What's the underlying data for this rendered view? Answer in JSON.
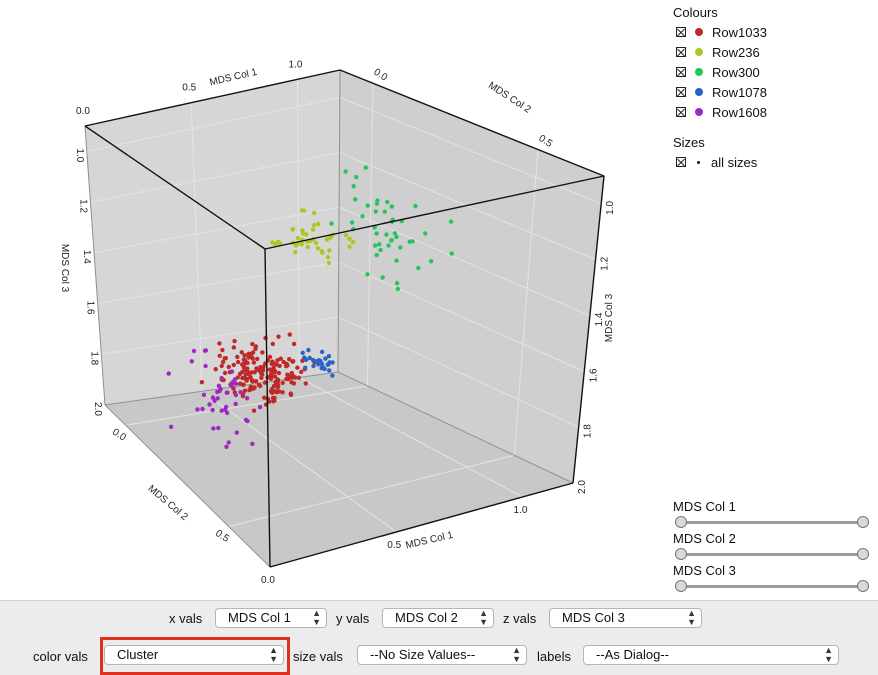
{
  "legend": {
    "colours_title": "Colours",
    "colours": [
      {
        "label": "Row1033",
        "color": "#c0282a"
      },
      {
        "label": "Row236",
        "color": "#aac820"
      },
      {
        "label": "Row300",
        "color": "#28c45a"
      },
      {
        "label": "Row1078",
        "color": "#2a62c8"
      },
      {
        "label": "Row1608",
        "color": "#a028c0"
      }
    ],
    "sizes_title": "Sizes",
    "sizes_item": "all sizes"
  },
  "sliders": [
    {
      "label": "MDS Col 1",
      "low": 0,
      "high": 1
    },
    {
      "label": "MDS Col 2",
      "low": 0,
      "high": 1
    },
    {
      "label": "MDS Col 3",
      "low": 0,
      "high": 1
    }
  ],
  "controls": {
    "x_label": "x vals",
    "x_value": "MDS Col 1",
    "y_label": "y vals",
    "y_value": "MDS Col 2",
    "z_label": "z vals",
    "z_value": "MDS Col 3",
    "color_label": "color vals",
    "color_value": "Cluster",
    "size_label": "size vals",
    "size_value": "--No Size Values--",
    "labels_label": "labels",
    "labels_value": "--As Dialog--"
  },
  "chart_data": {
    "type": "scatter",
    "projection": "3d",
    "axes": {
      "x": {
        "label": "MDS Col 1",
        "range": [
          0,
          1.2
        ],
        "ticks": [
          "0.0",
          "0.5",
          "1.0"
        ]
      },
      "y": {
        "label": "MDS Col 2",
        "range": [
          -0.1,
          0.7
        ],
        "ticks": [
          "0.0",
          "0.5"
        ]
      },
      "z": {
        "label": "MDS Col 3",
        "range": [
          0.9,
          2.0
        ],
        "ticks": [
          "1.0",
          "1.2",
          "1.4",
          "1.6",
          "1.8",
          "2.0"
        ]
      }
    },
    "grid": true,
    "background": "#d3d3d3",
    "series": [
      {
        "name": "Row1033",
        "color": "#c0282a",
        "count": 170,
        "center": {
          "x": 0.55,
          "y": 0.1,
          "z": 1.8
        }
      },
      {
        "name": "Row236",
        "color": "#aac820",
        "count": 40,
        "center": {
          "x": 0.3,
          "y": 0.55,
          "z": 1.0
        }
      },
      {
        "name": "Row300",
        "color": "#28c45a",
        "count": 45,
        "center": {
          "x": 1.0,
          "y": 0.2,
          "z": 1.3
        }
      },
      {
        "name": "Row1078",
        "color": "#2a62c8",
        "count": 25,
        "center": {
          "x": 0.9,
          "y": 0.05,
          "z": 1.85
        }
      },
      {
        "name": "Row1608",
        "color": "#a028c0",
        "count": 45,
        "center": {
          "x": 0.15,
          "y": 0.3,
          "z": 1.7
        }
      }
    ]
  }
}
